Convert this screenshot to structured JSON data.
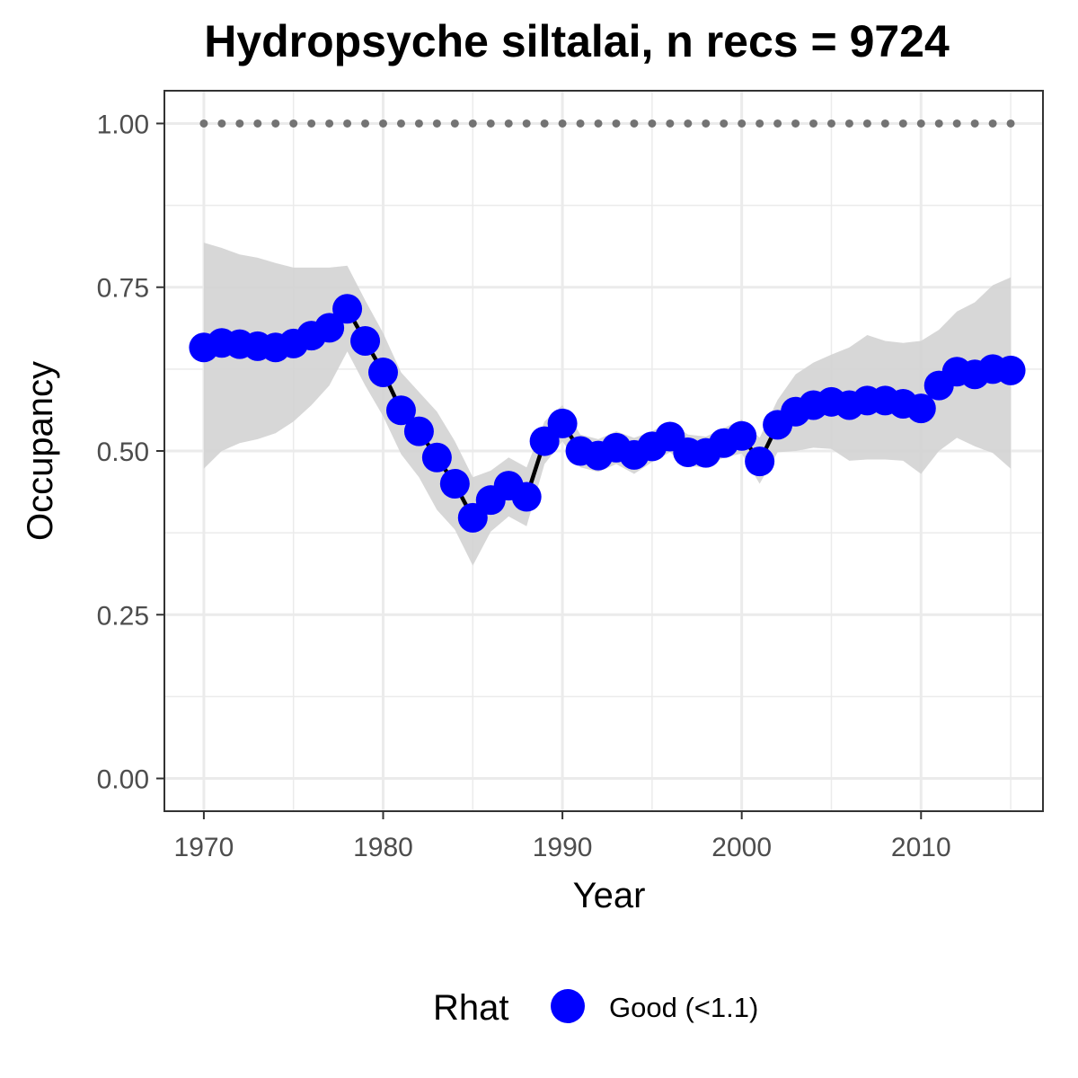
{
  "chart_data": {
    "type": "line",
    "title": "Hydropsyche siltalai, n recs = 9724",
    "xlabel": "Year",
    "ylabel": "Occupancy",
    "xlim": [
      1967.8,
      2016.8
    ],
    "ylim": [
      -0.05,
      1.05
    ],
    "x_ticks": [
      1970,
      1980,
      1990,
      2000,
      2010
    ],
    "x_tick_labels": [
      "1970",
      "1980",
      "1990",
      "2000",
      "2010"
    ],
    "y_ticks": [
      0,
      0.25,
      0.5,
      0.75,
      1
    ],
    "y_tick_labels": [
      "0.00",
      "0.25",
      "0.50",
      "0.75",
      "1.00"
    ],
    "grid": true,
    "legend": {
      "title": "Rhat",
      "placement": "bottom",
      "entries": [
        {
          "label": "Good (<1.1)",
          "color": "#0000ff"
        }
      ]
    },
    "colors": {
      "points": "#0000ff",
      "line": "#000000",
      "ribbon": "#d3d3d3",
      "reference": "#737373",
      "panel_border": "#333333",
      "grid": "#ebebeb"
    },
    "reference_line": {
      "value": 1.0,
      "style": "dotted"
    },
    "x": [
      1970,
      1971,
      1972,
      1973,
      1974,
      1975,
      1976,
      1977,
      1978,
      1979,
      1980,
      1981,
      1982,
      1983,
      1984,
      1985,
      1986,
      1987,
      1988,
      1989,
      1990,
      1991,
      1992,
      1993,
      1994,
      1995,
      1996,
      1997,
      1998,
      1999,
      2000,
      2001,
      2002,
      2003,
      2004,
      2005,
      2006,
      2007,
      2008,
      2009,
      2010,
      2011,
      2012,
      2013,
      2014,
      2015
    ],
    "series": [
      {
        "rhat": "Good (<1.1)",
        "values": [
          0.658,
          0.665,
          0.663,
          0.66,
          0.658,
          0.664,
          0.676,
          0.688,
          0.717,
          0.668,
          0.62,
          0.562,
          0.53,
          0.49,
          0.45,
          0.398,
          0.425,
          0.447,
          0.43,
          0.515,
          0.542,
          0.5,
          0.493,
          0.505,
          0.494,
          0.507,
          0.522,
          0.498,
          0.497,
          0.512,
          0.523,
          0.484,
          0.54,
          0.56,
          0.57,
          0.575,
          0.57,
          0.577,
          0.577,
          0.572,
          0.565,
          0.6,
          0.621,
          0.617,
          0.625,
          0.623
        ],
        "lower": [
          0.473,
          0.5,
          0.512,
          0.518,
          0.527,
          0.545,
          0.57,
          0.6,
          0.652,
          0.6,
          0.553,
          0.495,
          0.46,
          0.41,
          0.38,
          0.325,
          0.377,
          0.4,
          0.385,
          0.48,
          0.515,
          0.475,
          0.468,
          0.48,
          0.465,
          0.483,
          0.498,
          0.477,
          0.475,
          0.49,
          0.496,
          0.45,
          0.498,
          0.5,
          0.505,
          0.503,
          0.485,
          0.487,
          0.487,
          0.485,
          0.465,
          0.5,
          0.52,
          0.507,
          0.497,
          0.473
        ],
        "upper": [
          0.818,
          0.81,
          0.8,
          0.795,
          0.787,
          0.78,
          0.78,
          0.78,
          0.783,
          0.73,
          0.68,
          0.62,
          0.59,
          0.56,
          0.515,
          0.46,
          0.47,
          0.49,
          0.475,
          0.545,
          0.57,
          0.525,
          0.518,
          0.53,
          0.52,
          0.53,
          0.545,
          0.525,
          0.522,
          0.535,
          0.548,
          0.52,
          0.578,
          0.617,
          0.635,
          0.647,
          0.658,
          0.677,
          0.668,
          0.665,
          0.668,
          0.685,
          0.713,
          0.727,
          0.753,
          0.765
        ]
      }
    ]
  }
}
